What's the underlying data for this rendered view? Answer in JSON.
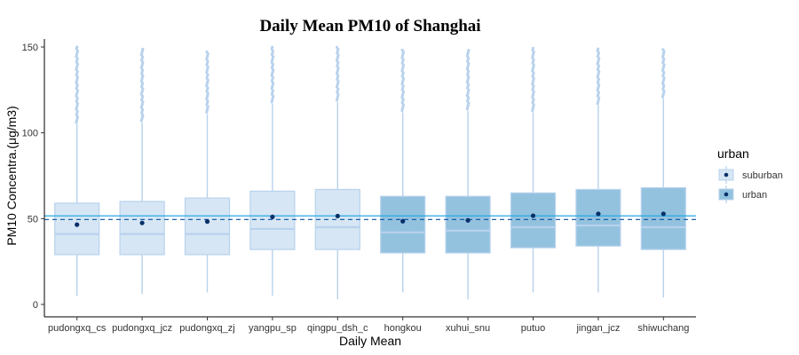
{
  "chart_data": {
    "type": "box",
    "title": "Daily Mean PM10 of Shanghai",
    "xlabel": "Daily Mean",
    "ylabel": "PM10 Concentra.(μg/m3)",
    "ylim": [
      -8,
      157
    ],
    "yticks": [
      0,
      50,
      100,
      150
    ],
    "grid": false,
    "legend": {
      "title": "urban",
      "placement": "right",
      "entries": [
        "suburban",
        "urban"
      ]
    },
    "colors": {
      "suburban_fill": "#d6e6f5",
      "suburban_stroke": "#b8d2ec",
      "urban_fill": "#93c2df",
      "urban_stroke": "#b8d2ec",
      "mean_point": "#08306b",
      "outlier": "#b8d2ec",
      "solid_line": "#29a8e0",
      "dashed_line": "#08519c"
    },
    "reference_lines": [
      {
        "style": "solid",
        "value": 51.6
      },
      {
        "style": "dashed",
        "value": 49.5
      }
    ],
    "categories": [
      "pudongxq_cs",
      "pudongxq_jcz",
      "pudongxq_zj",
      "yangpu_sp",
      "qingpu_dsh_c",
      "hongkou",
      "xuhui_snu",
      "putuo",
      "jingan_jcz",
      "shiwuchang"
    ],
    "groups": [
      "suburban",
      "suburban",
      "suburban",
      "suburban",
      "suburban",
      "urban",
      "urban",
      "urban",
      "urban",
      "urban"
    ],
    "boxes": [
      {
        "whisker_low": 5,
        "q1": 29,
        "median": 41,
        "q3": 59,
        "whisker_high": 105,
        "mean": 46.5,
        "outlier_min": 106,
        "outlier_max": 150
      },
      {
        "whisker_low": 6,
        "q1": 29,
        "median": 41,
        "q3": 60,
        "whisker_high": 106,
        "mean": 47.5,
        "outlier_min": 107,
        "outlier_max": 149
      },
      {
        "whisker_low": 7,
        "q1": 29,
        "median": 41,
        "q3": 62,
        "whisker_high": 111,
        "mean": 48.3,
        "outlier_min": 112,
        "outlier_max": 148
      },
      {
        "whisker_low": 5,
        "q1": 32,
        "median": 44,
        "q3": 66,
        "whisker_high": 117,
        "mean": 51,
        "outlier_min": 118,
        "outlier_max": 150
      },
      {
        "whisker_low": 3,
        "q1": 32,
        "median": 45,
        "q3": 67,
        "whisker_high": 118,
        "mean": 51.5,
        "outlier_min": 119,
        "outlier_max": 150
      },
      {
        "whisker_low": 7,
        "q1": 30,
        "median": 42,
        "q3": 63,
        "whisker_high": 112,
        "mean": 48.5,
        "outlier_min": 113,
        "outlier_max": 149
      },
      {
        "whisker_low": 3,
        "q1": 30,
        "median": 43,
        "q3": 63,
        "whisker_high": 113,
        "mean": 49,
        "outlier_min": 114,
        "outlier_max": 149
      },
      {
        "whisker_low": 7,
        "q1": 33,
        "median": 45,
        "q3": 65,
        "whisker_high": 112,
        "mean": 51.7,
        "outlier_min": 113,
        "outlier_max": 150
      },
      {
        "whisker_low": 7,
        "q1": 34,
        "median": 46,
        "q3": 67,
        "whisker_high": 116,
        "mean": 52.8,
        "outlier_min": 117,
        "outlier_max": 149
      },
      {
        "whisker_low": 4,
        "q1": 32,
        "median": 45,
        "q3": 68,
        "whisker_high": 120,
        "mean": 52.8,
        "outlier_min": 121,
        "outlier_max": 149
      }
    ]
  }
}
